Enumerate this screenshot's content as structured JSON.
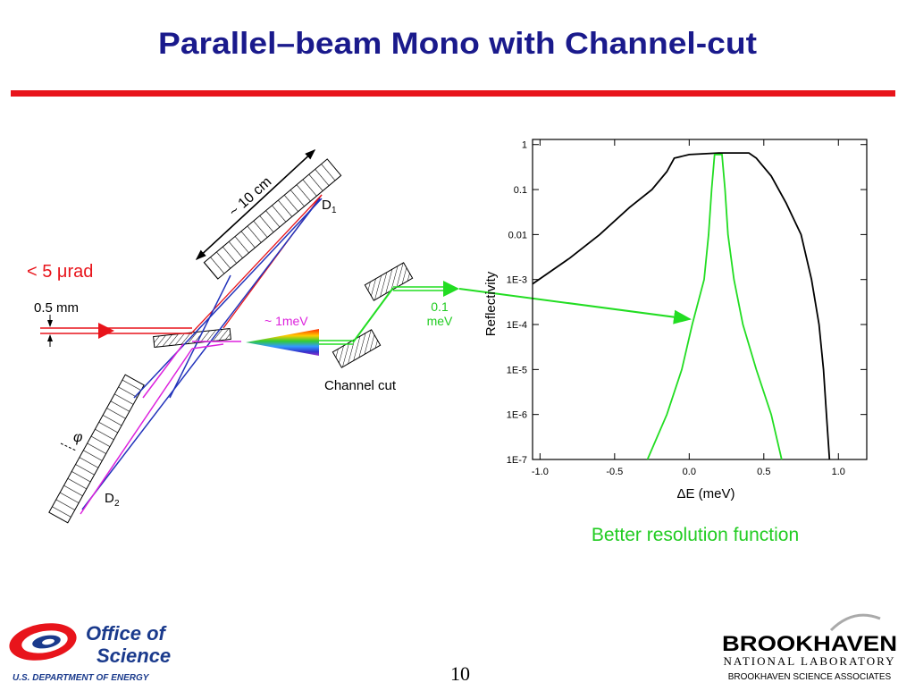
{
  "title": "Parallel–beam Mono with Channel-cut",
  "diagram": {
    "length_label": "~ 10 cm",
    "d1": {
      "letter": "D",
      "subscript": "1"
    },
    "d2": {
      "letter": "D",
      "subscript": "2"
    },
    "divergence_label": "< 5 μrad",
    "beam_size_label": "0.5 mm",
    "bandwidth_label": "~ 1meV",
    "output_bandwidth": [
      "0.1",
      "meV"
    ],
    "channel_cut_label": "Channel cut",
    "angle_label": "φ"
  },
  "chart_data": {
    "type": "line",
    "xlabel": "ΔE (meV)",
    "ylabel": "Reflectivity",
    "log_y": true,
    "xlim": [
      -1.05,
      1.19
    ],
    "ylim": [
      1e-07,
      1.3
    ],
    "xticks": [
      {
        "value": -1,
        "label": "-1.0"
      },
      -0.5,
      {
        "value": 0,
        "label": "0.0"
      },
      0.5,
      {
        "value": 1,
        "label": "1.0"
      }
    ],
    "yticks": [
      1,
      0.1,
      0.01,
      {
        "value": 0.001,
        "label": "1E-3"
      },
      {
        "value": 0.0001,
        "label": "1E-4"
      },
      {
        "value": 1e-05,
        "label": "1E-5"
      },
      {
        "value": 1e-06,
        "label": "1E-6"
      },
      {
        "value": 1e-07,
        "label": "1E-7"
      }
    ],
    "series": [
      {
        "color": "#000000",
        "x": [
          -1.05,
          -0.8,
          -0.6,
          -0.4,
          -0.25,
          -0.15,
          -0.1,
          0.0,
          0.2,
          0.4,
          0.45,
          0.55,
          0.65,
          0.75,
          0.82,
          0.87,
          0.9,
          0.92,
          0.94
        ],
        "values": [
          0.0008,
          0.003,
          0.01,
          0.04,
          0.1,
          0.25,
          0.5,
          0.6,
          0.65,
          0.65,
          0.5,
          0.2,
          0.05,
          0.01,
          0.001,
          0.0001,
          1e-05,
          1e-06,
          1e-07
        ]
      },
      {
        "color": "#22dd22",
        "x": [
          -0.28,
          -0.15,
          -0.05,
          0.02,
          0.1,
          0.13,
          0.15,
          0.17,
          0.22,
          0.24,
          0.26,
          0.3,
          0.36,
          0.45,
          0.55,
          0.62
        ],
        "values": [
          1e-07,
          1e-06,
          1e-05,
          0.0001,
          0.001,
          0.01,
          0.1,
          0.6,
          0.6,
          0.1,
          0.01,
          0.001,
          0.0001,
          1e-05,
          1e-06,
          1e-07
        ]
      }
    ]
  },
  "caption": "Better resolution function",
  "footer": {
    "doe_line1": "Office of",
    "doe_line2": "Science",
    "doe_line3": "U.S. DEPARTMENT OF ENERGY",
    "page_number": "10",
    "bnl_line1": "BROOKHAVEN",
    "bnl_line2": "NATIONAL LABORATORY",
    "bnl_line3": "BROOKHAVEN SCIENCE ASSOCIATES"
  }
}
